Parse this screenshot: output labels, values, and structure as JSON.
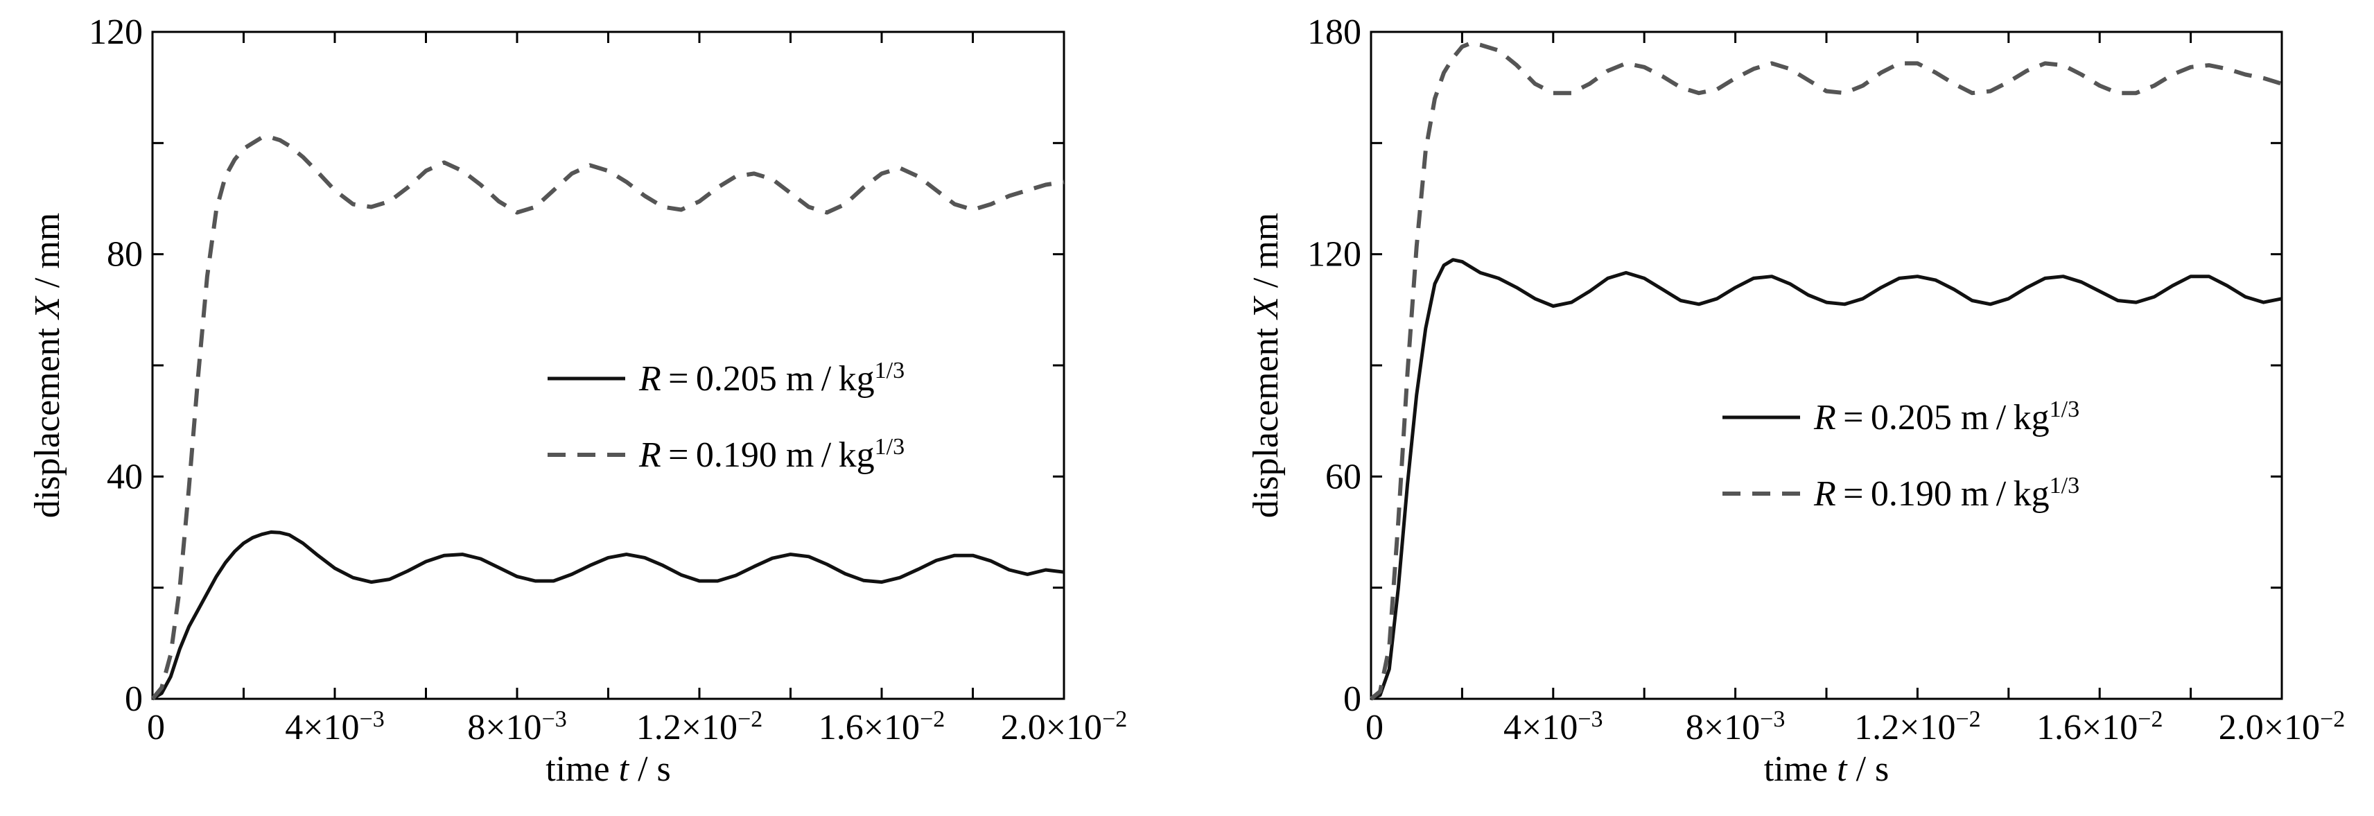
{
  "chart_data": [
    {
      "type": "line",
      "xlabel": "time t / s",
      "ylabel": "displacement X / mm",
      "xlim": [
        0,
        0.02
      ],
      "ylim": [
        0,
        120
      ],
      "x_ticks": [
        {
          "value": 0,
          "label": "0"
        },
        {
          "value": 0.004,
          "label": "4×10⁻³"
        },
        {
          "value": 0.008,
          "label": "8×10⁻³"
        },
        {
          "value": 0.012,
          "label": "1.2×10⁻²"
        },
        {
          "value": 0.016,
          "label": "1.6×10⁻²"
        },
        {
          "value": 0.02,
          "label": "2.0×10⁻²"
        }
      ],
      "y_ticks": [
        {
          "value": 0,
          "label": "0"
        },
        {
          "value": 40,
          "label": "40"
        },
        {
          "value": 80,
          "label": "80"
        },
        {
          "value": 120,
          "label": "120"
        }
      ],
      "grid": false,
      "legend_position": "center-right",
      "series": [
        {
          "name": "R = 0.205 m/kg^1/3",
          "style": "solid",
          "color": "#111111",
          "x": [
            0,
            0.0002,
            0.0004,
            0.0006,
            0.0008,
            0.001,
            0.0012,
            0.0014,
            0.0016,
            0.0018,
            0.002,
            0.0022,
            0.0024,
            0.0026,
            0.0028,
            0.003,
            0.0033,
            0.0036,
            0.004,
            0.0044,
            0.0048,
            0.0052,
            0.0056,
            0.006,
            0.0064,
            0.0068,
            0.0072,
            0.0076,
            0.008,
            0.0084,
            0.0088,
            0.0092,
            0.0096,
            0.01,
            0.0104,
            0.0108,
            0.0112,
            0.0116,
            0.012,
            0.0124,
            0.0128,
            0.0132,
            0.0136,
            0.014,
            0.0144,
            0.0148,
            0.0152,
            0.0156,
            0.016,
            0.0164,
            0.0168,
            0.0172,
            0.0176,
            0.018,
            0.0184,
            0.0188,
            0.0192,
            0.0196,
            0.02
          ],
          "y": [
            0,
            1,
            4,
            9,
            13,
            16,
            19,
            22,
            24.5,
            26.5,
            28,
            29,
            29.6,
            30,
            29.9,
            29.5,
            28,
            26,
            23.5,
            21.8,
            21,
            21.5,
            23,
            24.7,
            25.8,
            26,
            25.2,
            23.6,
            22,
            21.2,
            21.2,
            22.4,
            24,
            25.4,
            26,
            25.4,
            24,
            22.3,
            21.2,
            21.2,
            22.2,
            23.8,
            25.3,
            26,
            25.6,
            24.2,
            22.5,
            21.3,
            21,
            21.8,
            23.3,
            24.9,
            25.8,
            25.8,
            24.8,
            23.2,
            22.4,
            23.2,
            22.8
          ]
        },
        {
          "name": "R = 0.190 m/kg^1/3",
          "style": "dashed",
          "color": "#555555",
          "x": [
            0,
            0.0002,
            0.0004,
            0.0006,
            0.0008,
            0.001,
            0.0012,
            0.0014,
            0.0016,
            0.0018,
            0.002,
            0.0022,
            0.0024,
            0.0026,
            0.0028,
            0.003,
            0.0033,
            0.0036,
            0.004,
            0.0044,
            0.0048,
            0.0052,
            0.0056,
            0.006,
            0.0064,
            0.0068,
            0.0072,
            0.0076,
            0.008,
            0.0084,
            0.0088,
            0.0092,
            0.0096,
            0.01,
            0.0104,
            0.0108,
            0.0112,
            0.0116,
            0.012,
            0.0124,
            0.0128,
            0.0132,
            0.0136,
            0.014,
            0.0144,
            0.0148,
            0.0152,
            0.0156,
            0.016,
            0.0164,
            0.0168,
            0.0172,
            0.0176,
            0.018,
            0.0184,
            0.0188,
            0.0192,
            0.0196,
            0.02
          ],
          "y": [
            0,
            2,
            8,
            20,
            38,
            58,
            76,
            88,
            94,
            97,
            99,
            100,
            101,
            101,
            100.5,
            99.5,
            97.5,
            95,
            91.5,
            89,
            88.5,
            89.5,
            92,
            95,
            96.5,
            95,
            92.5,
            89.5,
            87.5,
            88.5,
            91.5,
            94.5,
            96,
            95,
            93,
            90.5,
            88.5,
            88,
            89.5,
            92,
            94,
            94.5,
            93.5,
            91,
            88.5,
            87.5,
            89,
            92,
            94.5,
            95.5,
            94,
            91.5,
            89,
            88,
            89,
            90.5,
            91.5,
            92.5,
            93
          ]
        }
      ]
    },
    {
      "type": "line",
      "xlabel": "time t / s",
      "ylabel": "displacement X / mm",
      "xlim": [
        0,
        0.02
      ],
      "ylim": [
        0,
        180
      ],
      "x_ticks": [
        {
          "value": 0,
          "label": "0"
        },
        {
          "value": 0.004,
          "label": "4×10⁻³"
        },
        {
          "value": 0.008,
          "label": "8×10⁻³"
        },
        {
          "value": 0.012,
          "label": "1.2×10⁻²"
        },
        {
          "value": 0.016,
          "label": "1.6×10⁻²"
        },
        {
          "value": 0.02,
          "label": "2.0×10⁻²"
        }
      ],
      "y_ticks": [
        {
          "value": 0,
          "label": "0"
        },
        {
          "value": 60,
          "label": "60"
        },
        {
          "value": 120,
          "label": "120"
        },
        {
          "value": 180,
          "label": "180"
        }
      ],
      "grid": false,
      "legend_position": "center-right",
      "series": [
        {
          "name": "R = 0.205 m/kg^1/3",
          "style": "solid",
          "color": "#111111",
          "x": [
            0,
            0.0002,
            0.0004,
            0.0006,
            0.0008,
            0.001,
            0.0012,
            0.0014,
            0.0016,
            0.0018,
            0.002,
            0.0022,
            0.0024,
            0.0028,
            0.0032,
            0.0036,
            0.004,
            0.0044,
            0.0048,
            0.0052,
            0.0056,
            0.006,
            0.0064,
            0.0068,
            0.0072,
            0.0076,
            0.008,
            0.0084,
            0.0088,
            0.0092,
            0.0096,
            0.01,
            0.0104,
            0.0108,
            0.0112,
            0.0116,
            0.012,
            0.0124,
            0.0128,
            0.0132,
            0.0136,
            0.014,
            0.0144,
            0.0148,
            0.0152,
            0.0156,
            0.016,
            0.0164,
            0.0168,
            0.0172,
            0.0176,
            0.018,
            0.0184,
            0.0188,
            0.0192,
            0.0196,
            0.02
          ],
          "y": [
            0,
            1,
            8,
            30,
            58,
            82,
            100,
            112,
            117,
            118.5,
            118,
            116.5,
            115,
            113.5,
            111,
            108,
            106,
            107,
            110,
            113.5,
            115,
            113.5,
            110.5,
            107.5,
            106.5,
            108,
            111,
            113.5,
            114,
            112,
            109,
            107,
            106.5,
            108,
            111,
            113.5,
            114,
            113,
            110.5,
            107.5,
            106.5,
            108,
            111,
            113.5,
            114,
            112.5,
            110,
            107.5,
            107,
            108.5,
            111.5,
            114,
            114,
            111.5,
            108.5,
            107,
            108
          ]
        },
        {
          "name": "R = 0.190 m/kg^1/3",
          "style": "dashed",
          "color": "#555555",
          "x": [
            0,
            0.0002,
            0.0004,
            0.0006,
            0.0008,
            0.001,
            0.0012,
            0.0014,
            0.0016,
            0.0018,
            0.002,
            0.0022,
            0.0024,
            0.0028,
            0.0032,
            0.0036,
            0.004,
            0.0044,
            0.0048,
            0.0052,
            0.0056,
            0.006,
            0.0064,
            0.0068,
            0.0072,
            0.0076,
            0.008,
            0.0084,
            0.0088,
            0.0092,
            0.0096,
            0.01,
            0.0104,
            0.0108,
            0.0112,
            0.0116,
            0.012,
            0.0124,
            0.0128,
            0.0132,
            0.0136,
            0.014,
            0.0144,
            0.0148,
            0.0152,
            0.0156,
            0.016,
            0.0164,
            0.0168,
            0.0172,
            0.0176,
            0.018,
            0.0184,
            0.0188,
            0.0192,
            0.0196,
            0.02
          ],
          "y": [
            0,
            2,
            14,
            48,
            88,
            122,
            148,
            162,
            169,
            173,
            176,
            177,
            176.5,
            175,
            171,
            166,
            163.5,
            163.5,
            166,
            169.5,
            171.5,
            170.5,
            168,
            165,
            163.5,
            164.5,
            167.5,
            170,
            171.5,
            170,
            167,
            164,
            163.5,
            165.5,
            169,
            171.5,
            171.5,
            169,
            166,
            163.5,
            164,
            166.5,
            169.5,
            171.5,
            171,
            168.5,
            165.5,
            163.5,
            163.5,
            165.5,
            168.5,
            170.5,
            171,
            170,
            168.5,
            167.5,
            166
          ]
        }
      ]
    }
  ]
}
